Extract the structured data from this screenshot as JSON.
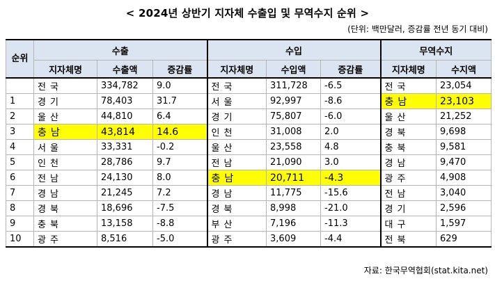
{
  "title": "< 2024년 상반기 지자체 수출입 및 무역수지 순위 >",
  "unit_note": "(단위: 백만달러, 증감률 전년 동기 대비)",
  "headers": {
    "rank": "순위",
    "export_group": "수출",
    "import_group": "수입",
    "balance_group": "무역수지",
    "region": "지자체명",
    "export_amount": "수출액",
    "import_amount": "수입액",
    "change": "증감률",
    "balance_amount": "수지액"
  },
  "highlight_color": "#ffff00",
  "rows": [
    {
      "rank": "",
      "exp_region": "전국",
      "exp_value": "334,782",
      "exp_change": "9.0",
      "imp_region": "전국",
      "imp_value": "311,728",
      "imp_change": "-6.5",
      "bal_region": "전국",
      "bal_value": "23,054"
    },
    {
      "rank": "1",
      "exp_region": "경기",
      "exp_value": "78,403",
      "exp_change": "31.7",
      "imp_region": "서울",
      "imp_value": "92,997",
      "imp_change": "-8.6",
      "bal_region": "충남",
      "bal_value": "23,103"
    },
    {
      "rank": "2",
      "exp_region": "울산",
      "exp_value": "44,810",
      "exp_change": "6.4",
      "imp_region": "경기",
      "imp_value": "75,807",
      "imp_change": "-6.0",
      "bal_region": "울산",
      "bal_value": "21,252"
    },
    {
      "rank": "3",
      "exp_region": "충남",
      "exp_value": "43,814",
      "exp_change": "14.6",
      "imp_region": "인천",
      "imp_value": "31,008",
      "imp_change": "2.0",
      "bal_region": "경북",
      "bal_value": "9,698"
    },
    {
      "rank": "4",
      "exp_region": "서울",
      "exp_value": "33,331",
      "exp_change": "-0.2",
      "imp_region": "울산",
      "imp_value": "23,558",
      "imp_change": "4.8",
      "bal_region": "충북",
      "bal_value": "9,581"
    },
    {
      "rank": "5",
      "exp_region": "인천",
      "exp_value": "28,786",
      "exp_change": "9.7",
      "imp_region": "전남",
      "imp_value": "21,090",
      "imp_change": "3.0",
      "bal_region": "경남",
      "bal_value": "9,470"
    },
    {
      "rank": "6",
      "exp_region": "전남",
      "exp_value": "24,130",
      "exp_change": "8.0",
      "imp_region": "충남",
      "imp_value": "20,711",
      "imp_change": "-4.3",
      "bal_region": "광주",
      "bal_value": "4,908"
    },
    {
      "rank": "7",
      "exp_region": "경남",
      "exp_value": "21,245",
      "exp_change": "7.2",
      "imp_region": "경남",
      "imp_value": "11,775",
      "imp_change": "-15.6",
      "bal_region": "전남",
      "bal_value": "3,040"
    },
    {
      "rank": "8",
      "exp_region": "경북",
      "exp_value": "18,696",
      "exp_change": "-7.5",
      "imp_region": "경북",
      "imp_value": "8,998",
      "imp_change": "-21.0",
      "bal_region": "경기",
      "bal_value": "2,596"
    },
    {
      "rank": "9",
      "exp_region": "충북",
      "exp_value": "13,158",
      "exp_change": "-8.8",
      "imp_region": "부산",
      "imp_value": "7,196",
      "imp_change": "-11.3",
      "bal_region": "대구",
      "bal_value": "1,597"
    },
    {
      "rank": "10",
      "exp_region": "광주",
      "exp_value": "8,516",
      "exp_change": "-5.0",
      "imp_region": "광주",
      "imp_value": "3,609",
      "imp_change": "-4.4",
      "bal_region": "전북",
      "bal_value": "629"
    }
  ],
  "source": "자료: 한국무역협회(stat.kita.net)"
}
